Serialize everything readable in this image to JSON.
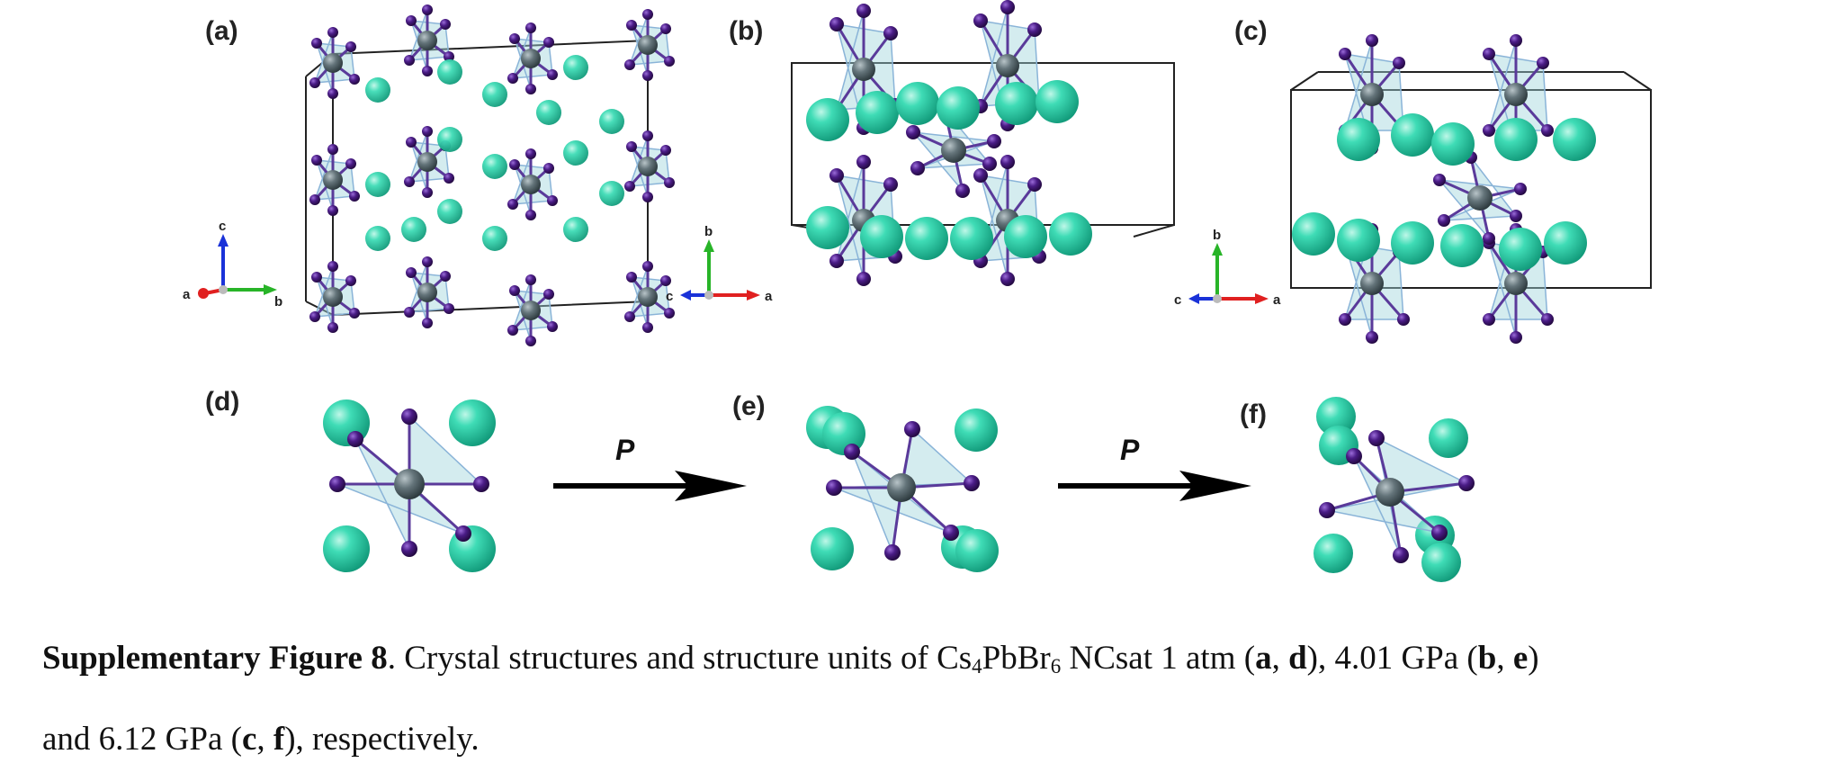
{
  "figure": {
    "panels": [
      {
        "id": "a",
        "label": "(a)",
        "axes": {
          "up": "c",
          "left": "a",
          "right": "b"
        }
      },
      {
        "id": "b",
        "label": "(b)",
        "axes": {
          "up": "b",
          "left": "c",
          "right": "a"
        }
      },
      {
        "id": "c",
        "label": "(c)",
        "axes": {
          "up": "b",
          "left": "c",
          "right": "a"
        }
      },
      {
        "id": "d",
        "label": "(d)"
      },
      {
        "id": "e",
        "label": "(e)"
      },
      {
        "id": "f",
        "label": "(f)"
      }
    ],
    "pressure_arrows": [
      {
        "label": "P"
      },
      {
        "label": "P"
      }
    ],
    "colors": {
      "cs": "#2ed3ad",
      "pb": "#5f6e74",
      "br": "#4a1c86",
      "octahedron": "#9fd4dc",
      "axis_x": "#e02020",
      "axis_y": "#28b428",
      "axis_z": "#1a32d8"
    }
  },
  "caption": {
    "title": "Supplementary Figure 8",
    "line1_text1": ". Crystal structures and structure units of Cs",
    "sub1": "4",
    "line1_text2": "PbBr",
    "sub2": "6",
    "line1_text3": " NCsat 1 atm (",
    "ref_a": "a",
    "sep1": ", ",
    "ref_d": "d",
    "line1_text4": "), 4.01 GPa (",
    "ref_b": "b",
    "sep2": ", ",
    "ref_e": "e",
    "line1_text5": ")",
    "line2_text1": "and 6.12 GPa (",
    "ref_c": "c",
    "sep3": ", ",
    "ref_f": "f",
    "line2_text2": "), respectively."
  }
}
